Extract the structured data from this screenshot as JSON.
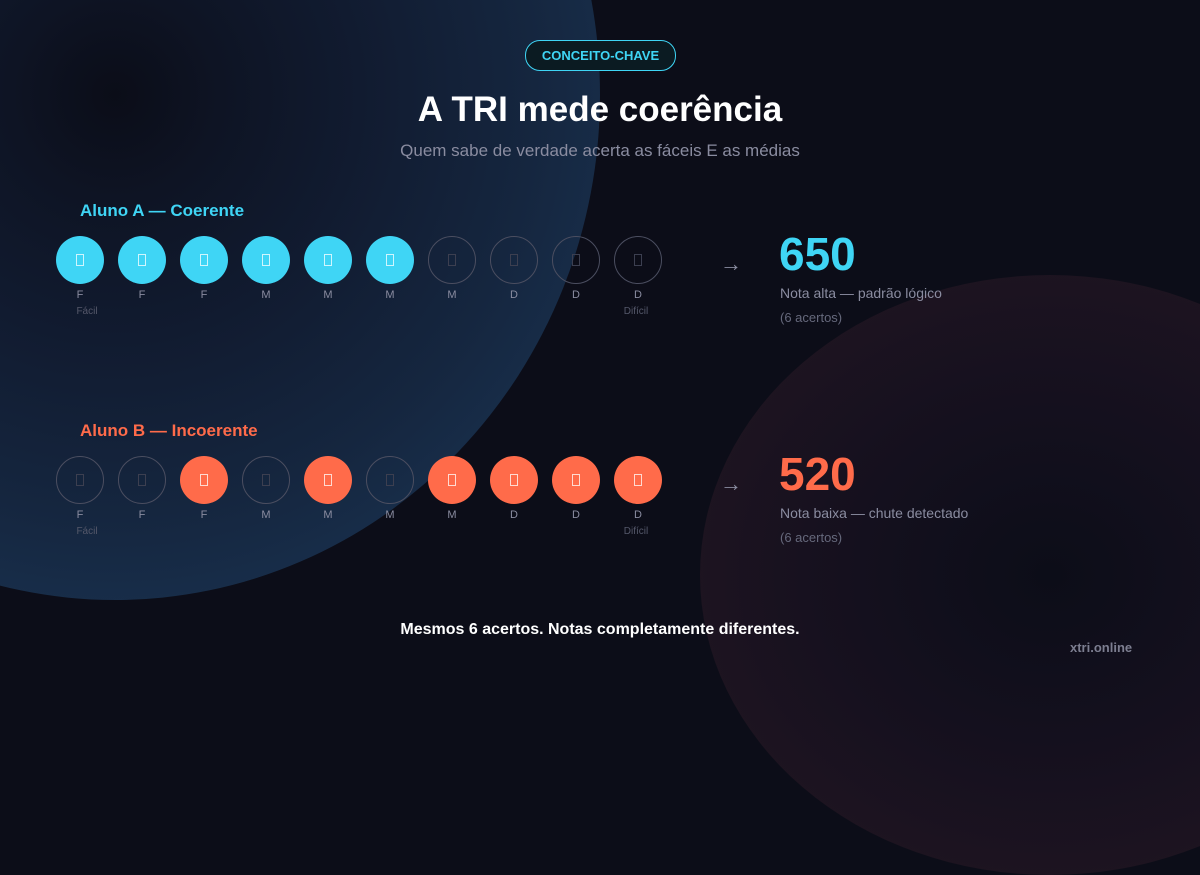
{
  "badge": "CONCEITO-CHAVE",
  "title": "A TRI mede coerência",
  "subtitle": "Quem sabe de verdade acerta as fáceis E as médias",
  "colors": {
    "accent_a": "#3fd5f5",
    "accent_b": "#ff6b4a",
    "muted": "#8a8ca0",
    "background": "#0c0d18"
  },
  "students": [
    {
      "label": "Aluno A — Coerente",
      "color": "#3fd5f5",
      "items": [
        {
          "level": "F",
          "correct": true
        },
        {
          "level": "F",
          "correct": true
        },
        {
          "level": "F",
          "correct": true
        },
        {
          "level": "M",
          "correct": true
        },
        {
          "level": "M",
          "correct": true
        },
        {
          "level": "M",
          "correct": true
        },
        {
          "level": "M",
          "correct": false
        },
        {
          "level": "D",
          "correct": false
        },
        {
          "level": "D",
          "correct": false
        },
        {
          "level": "D",
          "correct": false
        }
      ],
      "hint_easy": "Fácil",
      "hint_hard": "Difícil",
      "arrow": "→",
      "score": "650",
      "description": "Nota alta — padrão lógico",
      "count": "(6 acertos)"
    },
    {
      "label": "Aluno B — Incoerente",
      "color": "#ff6b4a",
      "items": [
        {
          "level": "F",
          "correct": false
        },
        {
          "level": "F",
          "correct": false
        },
        {
          "level": "F",
          "correct": true
        },
        {
          "level": "M",
          "correct": false
        },
        {
          "level": "M",
          "correct": true
        },
        {
          "level": "M",
          "correct": false
        },
        {
          "level": "M",
          "correct": true
        },
        {
          "level": "D",
          "correct": true
        },
        {
          "level": "D",
          "correct": true
        },
        {
          "level": "D",
          "correct": true
        }
      ],
      "hint_easy": "Fácil",
      "hint_hard": "Difícil",
      "arrow": "→",
      "score": "520",
      "description": "Nota baixa — chute detectado",
      "count": "(6 acertos)"
    }
  ],
  "footer": "Mesmos 6 acertos. Notas completamente diferentes.",
  "brand": "xtri.online"
}
